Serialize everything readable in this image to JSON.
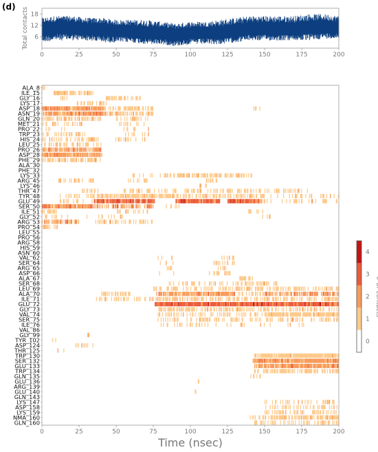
{
  "panel_label": "(d)",
  "chart_data": [
    {
      "type": "line",
      "ylabel": "Total contacts",
      "xlim": [
        0,
        200
      ],
      "ylim": [
        0,
        21
      ],
      "xticks": [
        0,
        25,
        50,
        75,
        100,
        125,
        150,
        175,
        200
      ],
      "yticks": [
        6,
        12,
        18
      ],
      "color": "#0d3f80",
      "series": [
        {
          "x": [
            0,
            10,
            20,
            30,
            40,
            50,
            60,
            70,
            80,
            90,
            100,
            110,
            120,
            130,
            140,
            150,
            160,
            170,
            180,
            190,
            200
          ],
          "y": [
            10,
            11,
            11,
            10,
            10,
            9,
            9,
            8,
            8,
            7,
            8,
            8,
            8,
            9,
            10,
            10,
            10,
            10,
            11,
            11,
            11
          ],
          "y_min": [
            3,
            4,
            4,
            4,
            3,
            3,
            3,
            2,
            2,
            1,
            2,
            2,
            2,
            3,
            4,
            4,
            4,
            4,
            4,
            5,
            5
          ],
          "y_max": [
            16,
            17,
            17,
            16,
            16,
            15,
            15,
            15,
            14,
            13,
            14,
            14,
            15,
            16,
            17,
            17,
            17,
            17,
            18,
            18,
            17
          ]
        }
      ]
    },
    {
      "type": "heatmap",
      "xlabel": "Time (nsec)",
      "xlim": [
        0,
        200
      ],
      "xticks": [
        0,
        25,
        50,
        75,
        100,
        125,
        150,
        175,
        200
      ],
      "colorbar": {
        "label": "# of contacts",
        "ticks": [
          0,
          1,
          2,
          3,
          4
        ],
        "colors": [
          "#ffffff",
          "#fdc98a",
          "#f79a5a",
          "#ea5a3a",
          "#c21414"
        ]
      },
      "residues": [
        "ALA_8",
        "ILE_15",
        "GLY_16",
        "LYS_17",
        "ASP_18",
        "ASN_19",
        "GLN_20",
        "MET_21",
        "PRO_22",
        "TRP_23",
        "HIS_24",
        "LEU_25",
        "PRO_26",
        "ASP_28",
        "PHE_29",
        "ALA_30",
        "PHE_32",
        "LYS_33",
        "ARG_45",
        "LYS_46",
        "THR_47",
        "TYR_48",
        "GLU_49",
        "SER_50",
        "ILE_51",
        "GLY_52",
        "ARG_53",
        "PRO_54",
        "LEU_55",
        "PRO_56",
        "ARG_58",
        "HIS_59",
        "ASN_60",
        "VAL_62",
        "SER_64",
        "ARG_65",
        "ASP_66",
        "ALA_67",
        "SER_68",
        "LEU_69",
        "ALA_70",
        "ILE_71",
        "GLU_72",
        "GLY_73",
        "VAL_74",
        "SER_75",
        "ILE_76",
        "VAL_86",
        "GLY_99",
        "TYR_102",
        "ASP_124",
        "THR_125",
        "TRP_130",
        "SER_132",
        "GLU_133",
        "TRP_134",
        "GLN_135",
        "GLU_136",
        "ARG_139",
        "GLU_140",
        "GLN_143",
        "LYS_147",
        "ASP_158",
        "LYS_159",
        "NMA_160",
        "GLN_160"
      ],
      "segments": [
        {
          "r": 0,
          "t0": 0,
          "t1": 2,
          "v": 1,
          "d": 0.8
        },
        {
          "r": 1,
          "t0": 8,
          "t1": 22,
          "v": 1,
          "d": 0.9
        },
        {
          "r": 1,
          "t0": 22,
          "t1": 35,
          "v": 1,
          "d": 0.5
        },
        {
          "r": 2,
          "t0": 10,
          "t1": 20,
          "v": 1,
          "d": 0.25
        },
        {
          "r": 2,
          "t0": 43,
          "t1": 68,
          "v": 1,
          "d": 0.5
        },
        {
          "r": 3,
          "t0": 23,
          "t1": 44,
          "v": 1,
          "d": 0.35
        },
        {
          "r": 4,
          "t0": 0,
          "t1": 42,
          "v": 2,
          "d": 0.95
        },
        {
          "r": 4,
          "t0": 42,
          "t1": 75,
          "v": 1,
          "d": 0.55
        },
        {
          "r": 4,
          "t0": 142,
          "t1": 148,
          "v": 1,
          "d": 0.3
        },
        {
          "r": 5,
          "t0": 0,
          "t1": 44,
          "v": 2,
          "d": 0.85
        },
        {
          "r": 5,
          "t0": 44,
          "t1": 75,
          "v": 1,
          "d": 0.6
        },
        {
          "r": 6,
          "t0": 0,
          "t1": 40,
          "v": 1,
          "d": 0.65
        },
        {
          "r": 6,
          "t0": 50,
          "t1": 72,
          "v": 1,
          "d": 0.4
        },
        {
          "r": 7,
          "t0": 0,
          "t1": 28,
          "v": 1,
          "d": 0.35
        },
        {
          "r": 7,
          "t0": 50,
          "t1": 70,
          "v": 1,
          "d": 0.25
        },
        {
          "r": 8,
          "t0": 0,
          "t1": 18,
          "v": 1,
          "d": 0.25
        },
        {
          "r": 8,
          "t0": 55,
          "t1": 72,
          "v": 1,
          "d": 0.25
        },
        {
          "r": 9,
          "t0": 0,
          "t1": 30,
          "v": 1,
          "d": 0.4
        },
        {
          "r": 9,
          "t0": 55,
          "t1": 72,
          "v": 1,
          "d": 0.3
        },
        {
          "r": 10,
          "t0": 0,
          "t1": 38,
          "v": 1,
          "d": 0.5
        },
        {
          "r": 10,
          "t0": 48,
          "t1": 70,
          "v": 1,
          "d": 0.3
        },
        {
          "r": 11,
          "t0": 0,
          "t1": 40,
          "v": 1,
          "d": 0.45
        },
        {
          "r": 12,
          "t0": 0,
          "t1": 40,
          "v": 2,
          "d": 0.85
        },
        {
          "r": 13,
          "t0": 0,
          "t1": 38,
          "v": 2,
          "d": 0.95
        },
        {
          "r": 13,
          "t0": 38,
          "t1": 42,
          "v": 2,
          "d": 0.6
        },
        {
          "r": 14,
          "t0": 0,
          "t1": 40,
          "v": 1,
          "d": 0.6
        },
        {
          "r": 17,
          "t0": 90,
          "t1": 142,
          "v": 1,
          "d": 0.65
        },
        {
          "r": 17,
          "t0": 60,
          "t1": 90,
          "v": 1,
          "d": 0.2
        },
        {
          "r": 18,
          "t0": 10,
          "t1": 35,
          "v": 1,
          "d": 0.35
        },
        {
          "r": 18,
          "t0": 58,
          "t1": 72,
          "v": 1,
          "d": 0.3
        },
        {
          "r": 18,
          "t0": 110,
          "t1": 118,
          "v": 1,
          "d": 0.3
        },
        {
          "r": 19,
          "t0": 105,
          "t1": 112,
          "v": 1,
          "d": 0.3
        },
        {
          "r": 20,
          "t0": 25,
          "t1": 40,
          "v": 1,
          "d": 0.3
        },
        {
          "r": 20,
          "t0": 55,
          "t1": 180,
          "v": 1,
          "d": 0.35
        },
        {
          "r": 21,
          "t0": 12,
          "t1": 35,
          "v": 1,
          "d": 0.3
        },
        {
          "r": 21,
          "t0": 35,
          "t1": 90,
          "v": 1,
          "d": 0.75
        },
        {
          "r": 21,
          "t0": 90,
          "t1": 150,
          "v": 1,
          "d": 0.55
        },
        {
          "r": 21,
          "t0": 150,
          "t1": 200,
          "v": 1,
          "d": 0.2
        },
        {
          "r": 22,
          "t0": 12,
          "t1": 35,
          "v": 1,
          "d": 0.35
        },
        {
          "r": 22,
          "t0": 35,
          "t1": 76,
          "v": 3,
          "d": 0.95
        },
        {
          "r": 22,
          "t0": 90,
          "t1": 120,
          "v": 3,
          "d": 0.95
        },
        {
          "r": 22,
          "t0": 125,
          "t1": 148,
          "v": 3,
          "d": 0.95
        },
        {
          "r": 22,
          "t0": 148,
          "t1": 200,
          "v": 1,
          "d": 0.25
        },
        {
          "r": 23,
          "t0": 0,
          "t1": 35,
          "v": 2,
          "d": 0.95
        },
        {
          "r": 23,
          "t0": 35,
          "t1": 75,
          "v": 2,
          "d": 0.5
        },
        {
          "r": 23,
          "t0": 82,
          "t1": 96,
          "v": 1,
          "d": 0.3
        },
        {
          "r": 24,
          "t0": 0,
          "t1": 10,
          "v": 1,
          "d": 0.4
        },
        {
          "r": 24,
          "t0": 50,
          "t1": 72,
          "v": 1,
          "d": 0.35
        },
        {
          "r": 24,
          "t0": 138,
          "t1": 150,
          "v": 1,
          "d": 0.3
        },
        {
          "r": 25,
          "t0": 0,
          "t1": 18,
          "v": 1,
          "d": 0.3
        },
        {
          "r": 25,
          "t0": 30,
          "t1": 55,
          "v": 1,
          "d": 0.25
        },
        {
          "r": 25,
          "t0": 148,
          "t1": 155,
          "v": 1,
          "d": 0.3
        },
        {
          "r": 26,
          "t0": 0,
          "t1": 25,
          "v": 2,
          "d": 0.8
        },
        {
          "r": 26,
          "t0": 35,
          "t1": 75,
          "v": 1,
          "d": 0.3
        },
        {
          "r": 27,
          "t0": 0,
          "t1": 12,
          "v": 1,
          "d": 0.45
        },
        {
          "r": 33,
          "t0": 78,
          "t1": 88,
          "v": 1,
          "d": 0.25
        },
        {
          "r": 33,
          "t0": 120,
          "t1": 130,
          "v": 1,
          "d": 0.3
        },
        {
          "r": 34,
          "t0": 78,
          "t1": 90,
          "v": 1,
          "d": 0.3
        },
        {
          "r": 34,
          "t0": 115,
          "t1": 130,
          "v": 1,
          "d": 0.3
        },
        {
          "r": 35,
          "t0": 80,
          "t1": 88,
          "v": 1,
          "d": 0.25
        },
        {
          "r": 35,
          "t0": 118,
          "t1": 128,
          "v": 1,
          "d": 0.25
        },
        {
          "r": 36,
          "t0": 78,
          "t1": 90,
          "v": 1,
          "d": 0.25
        },
        {
          "r": 36,
          "t0": 112,
          "t1": 130,
          "v": 1,
          "d": 0.3
        },
        {
          "r": 37,
          "t0": 133,
          "t1": 142,
          "v": 1,
          "d": 0.75
        },
        {
          "r": 38,
          "t0": 85,
          "t1": 140,
          "v": 1,
          "d": 0.3
        },
        {
          "r": 38,
          "t0": 140,
          "t1": 160,
          "v": 1,
          "d": 0.3
        },
        {
          "r": 39,
          "t0": 75,
          "t1": 200,
          "v": 1,
          "d": 0.45
        },
        {
          "r": 40,
          "t0": 40,
          "t1": 60,
          "v": 1,
          "d": 0.6
        },
        {
          "r": 40,
          "t0": 77,
          "t1": 130,
          "v": 2,
          "d": 0.95
        },
        {
          "r": 40,
          "t0": 130,
          "t1": 150,
          "v": 1,
          "d": 0.4
        },
        {
          "r": 40,
          "t0": 150,
          "t1": 200,
          "v": 2,
          "d": 0.7
        },
        {
          "r": 41,
          "t0": 35,
          "t1": 75,
          "v": 1,
          "d": 0.4
        },
        {
          "r": 41,
          "t0": 75,
          "t1": 200,
          "v": 1,
          "d": 0.55
        },
        {
          "r": 42,
          "t0": 76,
          "t1": 200,
          "v": 3,
          "d": 1.0
        },
        {
          "r": 43,
          "t0": 78,
          "t1": 140,
          "v": 1,
          "d": 0.6
        },
        {
          "r": 43,
          "t0": 140,
          "t1": 200,
          "v": 1,
          "d": 0.45
        },
        {
          "r": 44,
          "t0": 78,
          "t1": 150,
          "v": 1,
          "d": 0.35
        },
        {
          "r": 44,
          "t0": 150,
          "t1": 200,
          "v": 1,
          "d": 0.8
        },
        {
          "r": 45,
          "t0": 78,
          "t1": 200,
          "v": 1,
          "d": 0.4
        },
        {
          "r": 46,
          "t0": 78,
          "t1": 180,
          "v": 1,
          "d": 0.15
        },
        {
          "r": 47,
          "t0": 0,
          "t1": 5,
          "v": 1,
          "d": 0.2
        },
        {
          "r": 48,
          "t0": 30,
          "t1": 32,
          "v": 1,
          "d": 0.5
        },
        {
          "r": 49,
          "t0": 5,
          "t1": 10,
          "v": 1,
          "d": 0.3
        },
        {
          "r": 50,
          "t0": 20,
          "t1": 36,
          "v": 1,
          "d": 0.35
        },
        {
          "r": 51,
          "t0": 10,
          "t1": 16,
          "v": 1,
          "d": 0.3
        },
        {
          "r": 52,
          "t0": 143,
          "t1": 200,
          "v": 1,
          "d": 0.9
        },
        {
          "r": 53,
          "t0": 142,
          "t1": 200,
          "v": 2,
          "d": 1.0
        },
        {
          "r": 54,
          "t0": 143,
          "t1": 200,
          "v": 2,
          "d": 0.95
        },
        {
          "r": 55,
          "t0": 143,
          "t1": 200,
          "v": 1,
          "d": 0.55
        },
        {
          "r": 56,
          "t0": 140,
          "t1": 148,
          "v": 1,
          "d": 0.25
        },
        {
          "r": 57,
          "t0": 105,
          "t1": 106,
          "v": 1,
          "d": 1.0
        },
        {
          "r": 59,
          "t0": 103,
          "t1": 104,
          "v": 1,
          "d": 1.0
        },
        {
          "r": 61,
          "t0": 150,
          "t1": 200,
          "v": 1,
          "d": 0.25
        },
        {
          "r": 62,
          "t0": 150,
          "t1": 200,
          "v": 1,
          "d": 0.4
        },
        {
          "r": 63,
          "t0": 150,
          "t1": 200,
          "v": 1,
          "d": 0.35
        },
        {
          "r": 64,
          "t0": 140,
          "t1": 155,
          "v": 1,
          "d": 0.25
        },
        {
          "r": 64,
          "t0": 155,
          "t1": 200,
          "v": 1,
          "d": 0.75
        },
        {
          "r": 65,
          "t0": 142,
          "t1": 200,
          "v": 1,
          "d": 0.4
        }
      ]
    }
  ]
}
